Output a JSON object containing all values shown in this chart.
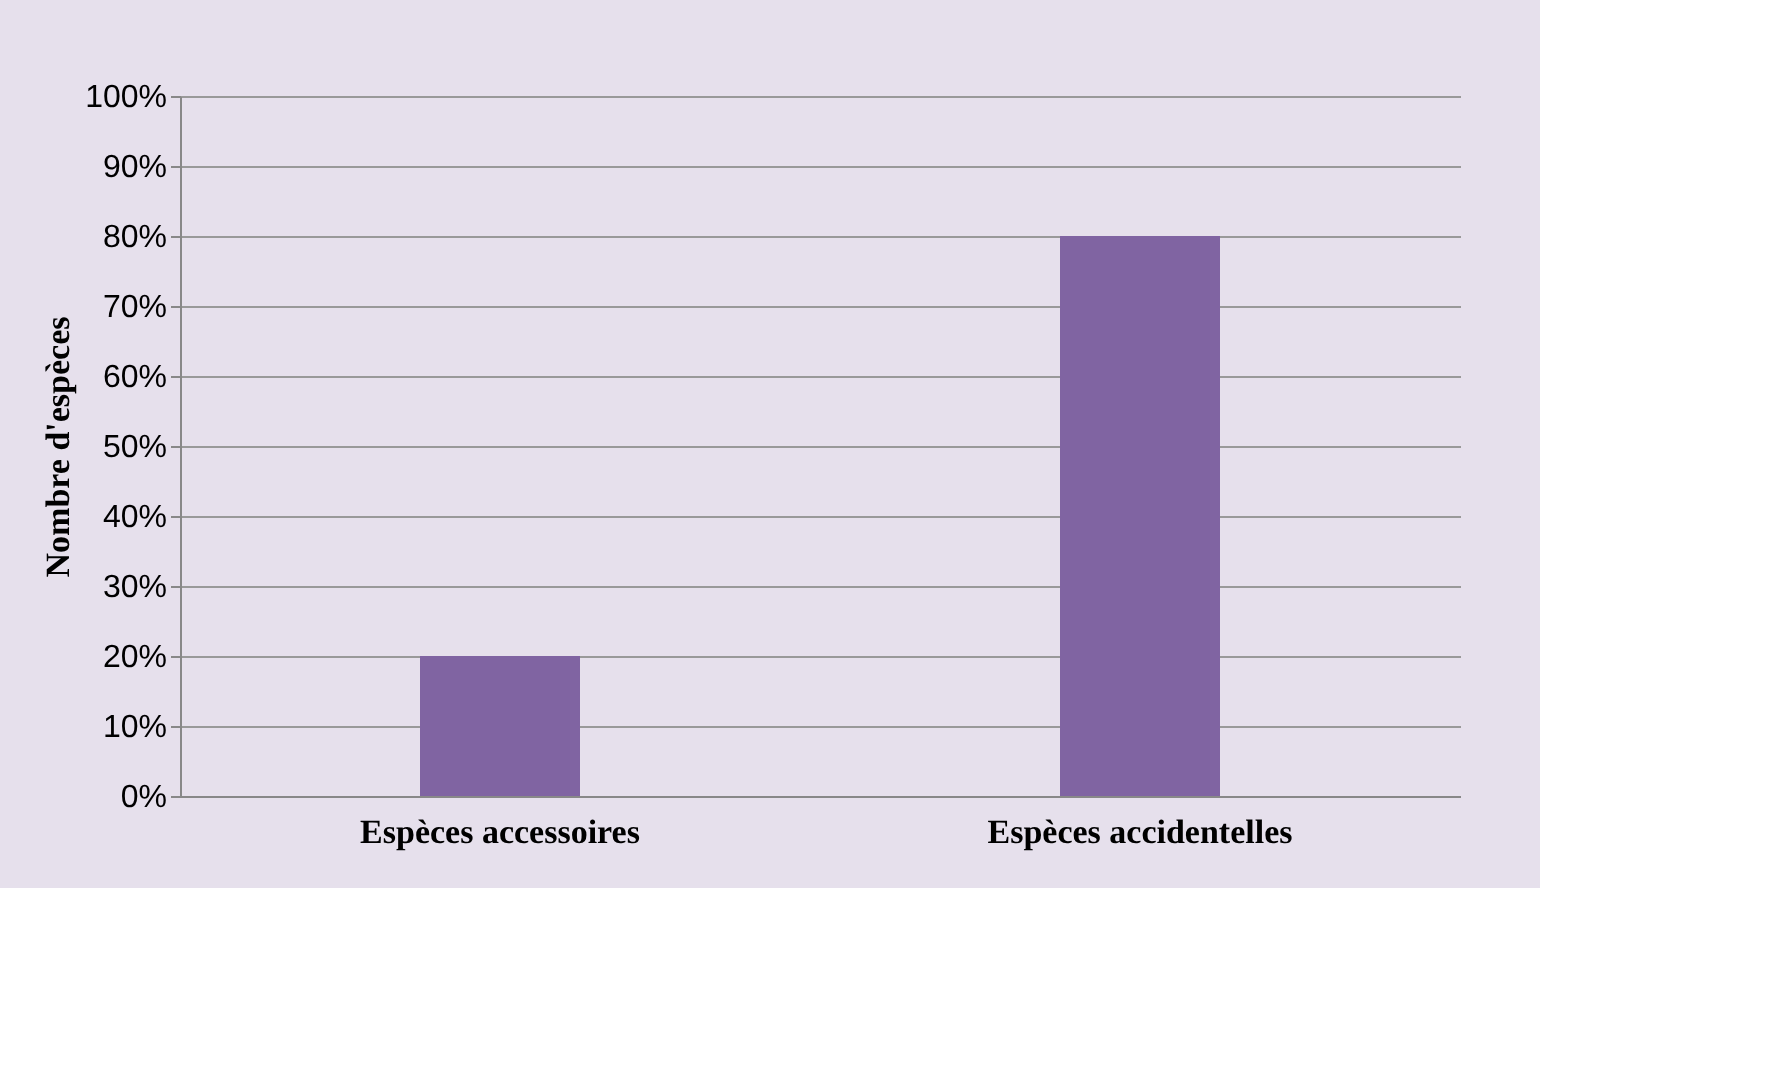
{
  "chart_data": {
    "type": "bar",
    "ylabel": "Nombre d'espèces",
    "categories": [
      "Espèces accessoires",
      "Espèces accidentelles"
    ],
    "series": [
      {
        "color": "#8064a2",
        "values": [
          20,
          80
        ]
      }
    ],
    "ylim": [
      0,
      100
    ],
    "yticks": [
      {
        "value": 0,
        "label": "0%"
      },
      {
        "value": 10,
        "label": "10%"
      },
      {
        "value": 20,
        "label": "20%"
      },
      {
        "value": 30,
        "label": "30%"
      },
      {
        "value": 40,
        "label": "40%"
      },
      {
        "value": 50,
        "label": "50%"
      },
      {
        "value": 60,
        "label": "60%"
      },
      {
        "value": 70,
        "label": "70%"
      },
      {
        "value": 80,
        "label": "80%"
      },
      {
        "value": 90,
        "label": "90%"
      },
      {
        "value": 100,
        "label": "100%"
      }
    ],
    "grid": "y"
  }
}
